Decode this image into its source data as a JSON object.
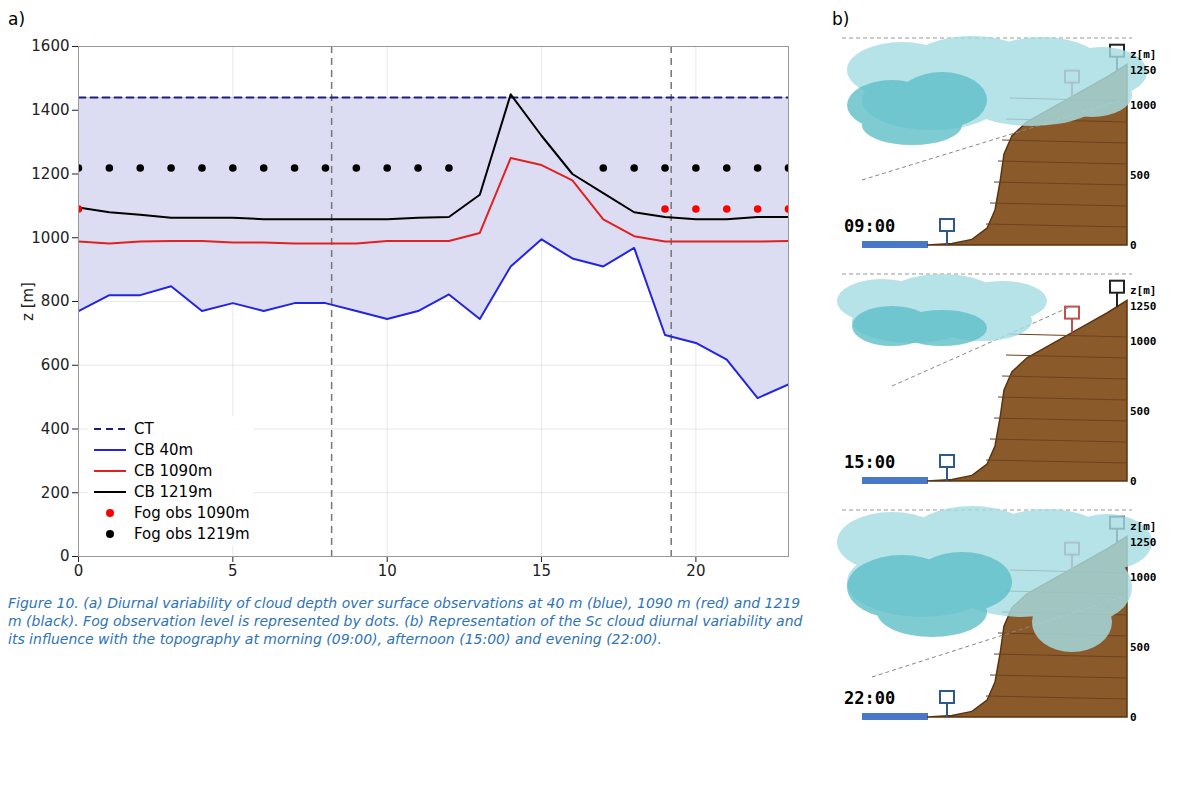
{
  "chart_data": {
    "type": "line",
    "panel": "a)",
    "caption": "Figure 10. (a) Diurnal variability of cloud depth over surface observations at 40 m (blue), 1090 m (red) and 1219 m (black). Fog observation level is represented by dots. (b) Representation of the Sc cloud diurnal variability and its influence with the topography at morning (09:00), afternoon (15:00) and evening (22:00).",
    "ylabel": "z [m]",
    "x": [
      0,
      1,
      2,
      3,
      4,
      5,
      6,
      7,
      8,
      9,
      10,
      11,
      12,
      13,
      14,
      15,
      16,
      17,
      18,
      19,
      20,
      21,
      22,
      23
    ],
    "xlim": [
      0,
      23
    ],
    "xticks": [
      0,
      5,
      10,
      15,
      20
    ],
    "ylim": [
      0,
      1600
    ],
    "yticks": [
      0,
      200,
      400,
      600,
      800,
      1000,
      1200,
      1400,
      1600
    ],
    "grid": true,
    "legend": "lower left",
    "vlines": [
      8.2,
      19.2
    ],
    "area": {
      "between": [
        "CB 40m",
        "CT"
      ],
      "color": "#dcdcf2"
    },
    "series": [
      {
        "name": "CT",
        "color": "#1c1c80",
        "line_style": "dashed",
        "values": [
          1440,
          1440,
          1440,
          1440,
          1440,
          1440,
          1440,
          1440,
          1440,
          1440,
          1440,
          1440,
          1440,
          1440,
          1440,
          1440,
          1440,
          1440,
          1440,
          1440,
          1440,
          1440,
          1440,
          1440
        ]
      },
      {
        "name": "CB 40m",
        "color": "#2323e6",
        "line_style": "solid",
        "values": [
          770,
          820,
          820,
          848,
          770,
          795,
          770,
          795,
          795,
          770,
          745,
          770,
          822,
          745,
          910,
          995,
          935,
          910,
          968,
          695,
          670,
          618,
          497,
          540
        ]
      },
      {
        "name": "CB 1090m",
        "color": "#e32020",
        "line_style": "solid",
        "values": [
          988,
          982,
          988,
          990,
          990,
          985,
          985,
          982,
          982,
          982,
          990,
          990,
          990,
          1015,
          1250,
          1228,
          1180,
          1058,
          1005,
          988,
          988,
          988,
          988,
          990
        ]
      },
      {
        "name": "CB 1219m",
        "color": "#000000",
        "line_style": "solid",
        "values": [
          1095,
          1080,
          1072,
          1063,
          1063,
          1063,
          1058,
          1058,
          1058,
          1058,
          1058,
          1063,
          1065,
          1135,
          1450,
          1320,
          1200,
          1140,
          1080,
          1065,
          1058,
          1058,
          1065,
          1065
        ]
      },
      {
        "name": "Fog obs 1090m",
        "type": "scatter",
        "marker": "circle",
        "color": "#ff0000",
        "values": [
          1090,
          null,
          null,
          null,
          null,
          null,
          null,
          null,
          null,
          null,
          null,
          null,
          null,
          null,
          null,
          null,
          null,
          null,
          null,
          1090,
          1090,
          1090,
          1090,
          1090
        ]
      },
      {
        "name": "Fog obs 1219m",
        "type": "scatter",
        "marker": "circle",
        "color": "#000000",
        "values": [
          1219,
          1219,
          1219,
          1219,
          1219,
          1219,
          1219,
          1219,
          1219,
          1219,
          1219,
          1219,
          1219,
          null,
          null,
          null,
          null,
          1219,
          1219,
          1219,
          1219,
          1219,
          1219,
          1219
        ]
      }
    ]
  },
  "diagram": {
    "panel": "b)",
    "axis_label": "z[m]",
    "ticks": [
      1250,
      1000,
      500,
      0
    ],
    "times": [
      "09:00",
      "15:00",
      "22:00"
    ]
  }
}
